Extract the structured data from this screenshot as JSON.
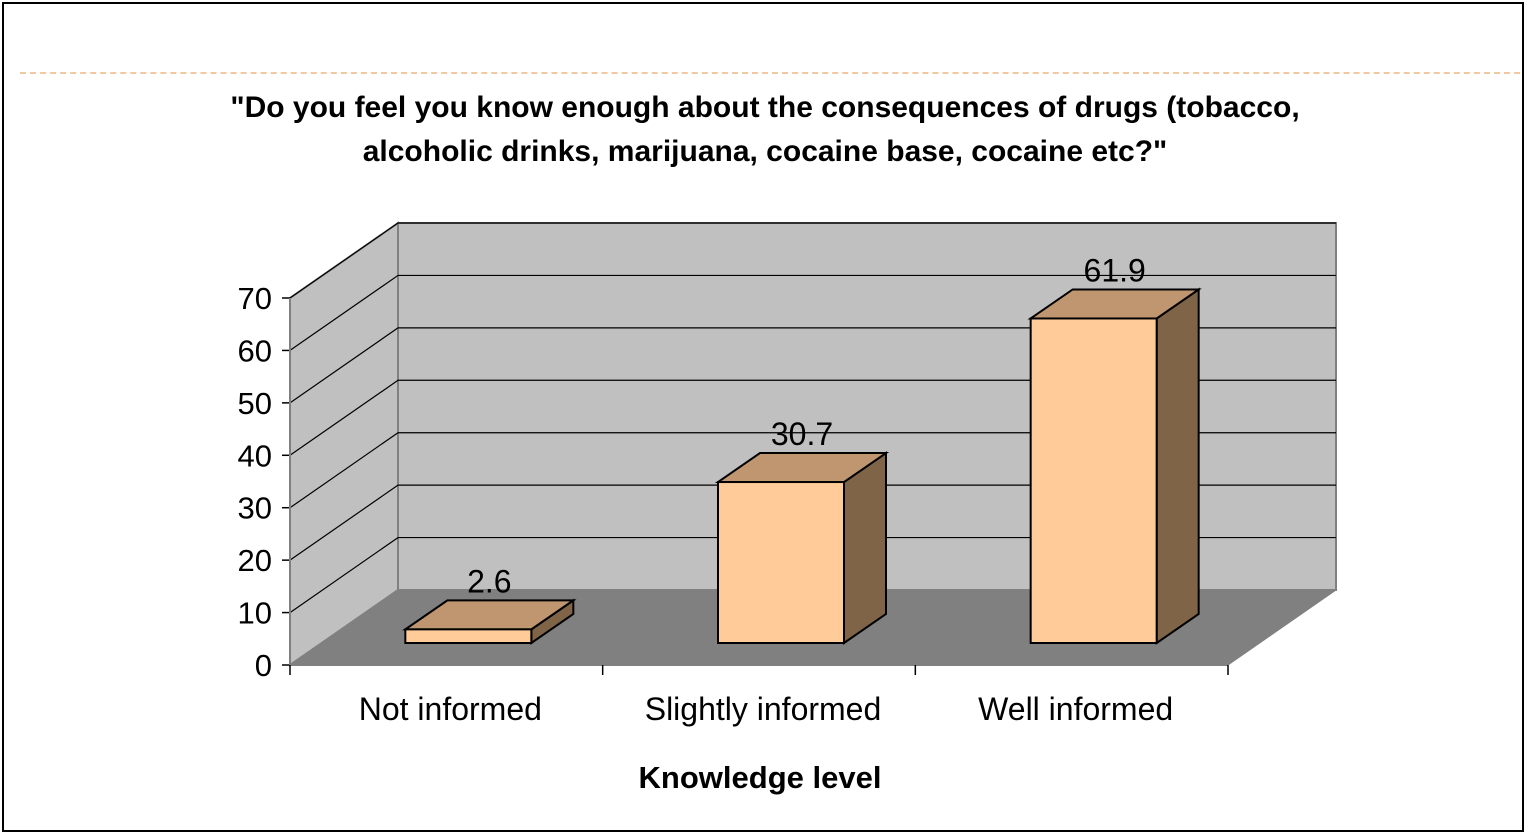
{
  "chart_data": {
    "type": "bar",
    "title_lines": [
      "\"Do you feel you know enough about the consequences of drugs (tobacco,",
      "alcoholic drinks, marijuana, cocaine base, cocaine etc?\""
    ],
    "categories": [
      "Not informed",
      "Slightly informed",
      "Well informed"
    ],
    "values": [
      2.6,
      30.7,
      61.9
    ],
    "value_labels": [
      "2.6",
      "30.7",
      "61.9"
    ],
    "xlabel": "Knowledge level",
    "ylabel": "",
    "ylim": [
      0,
      70
    ],
    "yticks": [
      "0",
      "10",
      "20",
      "30",
      "40",
      "50",
      "60",
      "70"
    ],
    "grid": true,
    "style": "3d",
    "colors": {
      "bar_front": "#ffcc99",
      "bar_top": "#c09670",
      "bar_side": "#806448",
      "wall": "#c0c0c0",
      "floor": "#808080",
      "deco_line": "#f2c8a0"
    }
  }
}
